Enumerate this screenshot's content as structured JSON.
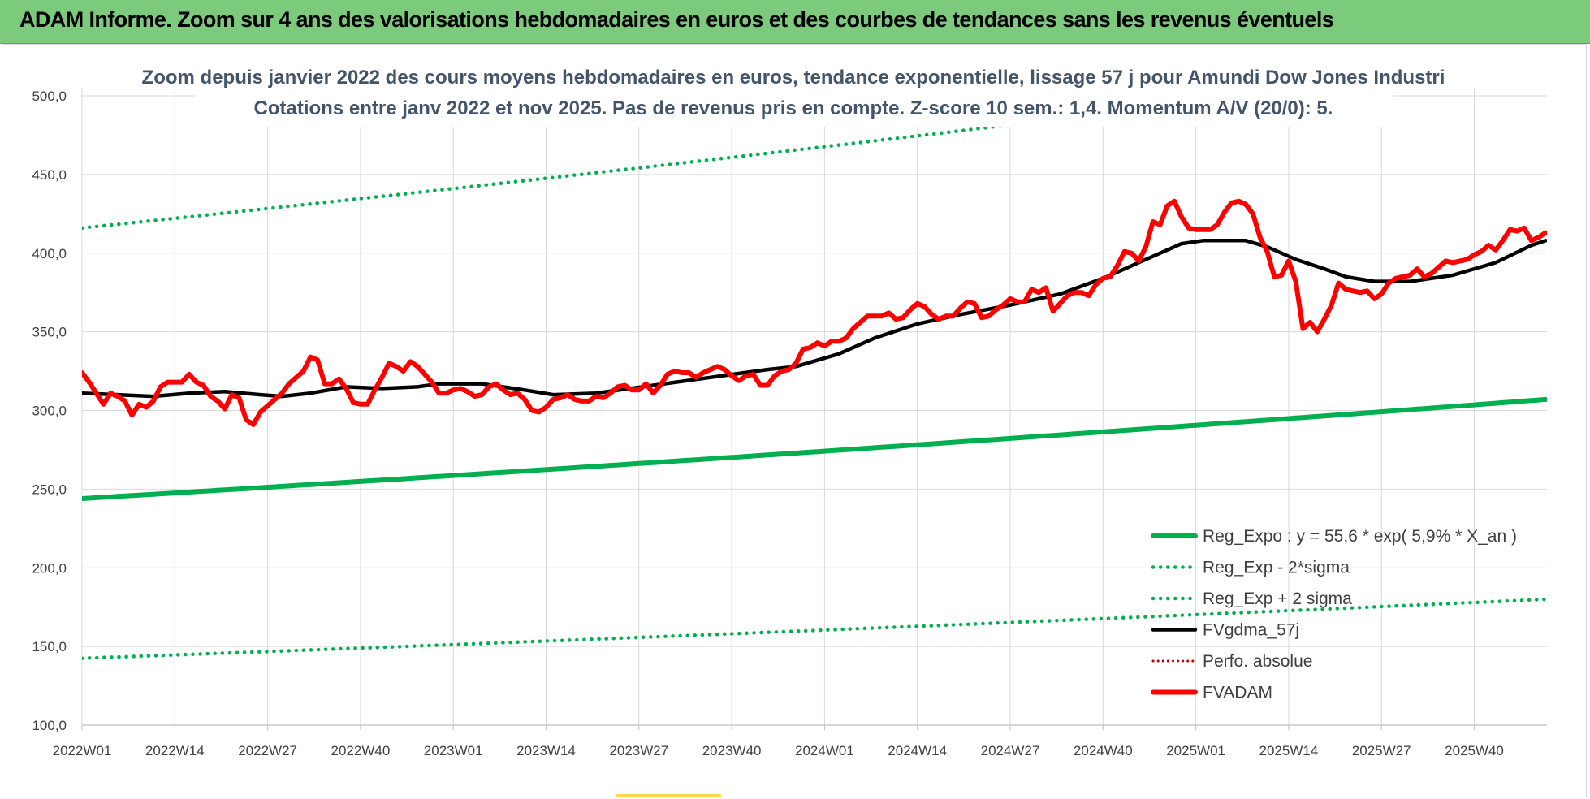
{
  "banner": {
    "title": "ADAM Informe. Zoom sur 4 ans des valorisations hebdomadaires en euros et des courbes de tendances sans les revenus éventuels"
  },
  "colors": {
    "banner_bg": "#7ccb7c",
    "reg_expo": "#00b050",
    "fvgdma": "#000000",
    "fvadam": "#ff0000",
    "perfo": "#c00000",
    "grid": "#d9d9d9",
    "title_text": "#44546a"
  },
  "chart_data": {
    "type": "line",
    "title_lines": [
      "Zoom depuis janvier 2022 des cours moyens hebdomadaires en euros, tendance exponentielle, lissage 57 j pour Amundi Dow Jones Industri",
      "Cotations entre janv 2022 et nov 2025. Pas de revenus pris en compte. Z-score 10 sem.: 1,4. Momentum A/V (20/0): 5."
    ],
    "xlabel": "",
    "ylabel": "",
    "ylim": [
      100,
      500
    ],
    "y_ticks": [
      "100,0",
      "150,0",
      "200,0",
      "250,0",
      "300,0",
      "350,0",
      "400,0",
      "450,0",
      "500,0"
    ],
    "x_ticks": [
      "2022W01",
      "2022W14",
      "2022W27",
      "2022W40",
      "2023W01",
      "2023W14",
      "2023W27",
      "2023W40",
      "2024W01",
      "2024W14",
      "2024W27",
      "2024W40",
      "2025W01",
      "2025W14",
      "2025W27",
      "2025W40"
    ],
    "x_tick_weeks": [
      0,
      13,
      26,
      39,
      52,
      65,
      78,
      91,
      104,
      117,
      130,
      143,
      156,
      169,
      182,
      195
    ],
    "week_count": 205,
    "grid": "vertical and horizontal",
    "legend_position": "bottom-right",
    "series": [
      {
        "name": "Reg_Expo : y = 55,6 * exp( 5,9% *  X_an )",
        "style": "solid-green",
        "start": 244,
        "end": 307
      },
      {
        "name": "Reg_Exp - 2*sigma",
        "style": "dotted-green",
        "start": 142.5,
        "end": 180
      },
      {
        "name": "Reg_Exp + 2 sigma",
        "style": "dotted-green",
        "start": 416,
        "end": 524
      },
      {
        "name": "FVgdma_57j",
        "style": "solid-black",
        "points": [
          [
            0,
            311
          ],
          [
            5,
            310
          ],
          [
            10,
            309
          ],
          [
            15,
            311
          ],
          [
            20,
            312
          ],
          [
            25,
            310
          ],
          [
            28,
            309
          ],
          [
            32,
            311
          ],
          [
            37,
            315
          ],
          [
            42,
            314
          ],
          [
            47,
            315
          ],
          [
            50,
            317
          ],
          [
            56,
            317
          ],
          [
            62,
            313
          ],
          [
            66,
            310
          ],
          [
            72,
            311
          ],
          [
            80,
            316
          ],
          [
            88,
            321
          ],
          [
            96,
            326
          ],
          [
            100,
            328
          ],
          [
            106,
            336
          ],
          [
            111,
            346
          ],
          [
            117,
            355
          ],
          [
            123,
            361
          ],
          [
            130,
            367
          ],
          [
            137,
            374
          ],
          [
            143,
            384
          ],
          [
            149,
            396
          ],
          [
            154,
            406
          ],
          [
            157,
            408
          ],
          [
            163,
            408
          ],
          [
            166,
            404
          ],
          [
            170,
            396
          ],
          [
            174,
            390
          ],
          [
            177,
            385
          ],
          [
            181,
            382
          ],
          [
            186,
            382
          ],
          [
            192,
            386
          ],
          [
            198,
            394
          ],
          [
            203,
            405
          ],
          [
            205,
            408
          ]
        ]
      },
      {
        "name": "Perfo. absolue",
        "style": "dotted-darkred",
        "points": []
      },
      {
        "name": "FVADAM",
        "style": "solid-red",
        "points": [
          [
            0,
            324
          ],
          [
            1,
            318
          ],
          [
            2,
            311
          ],
          [
            3,
            304
          ],
          [
            4,
            311
          ],
          [
            5,
            309
          ],
          [
            6,
            306
          ],
          [
            7,
            297
          ],
          [
            8,
            304
          ],
          [
            9,
            302
          ],
          [
            10,
            306
          ],
          [
            11,
            315
          ],
          [
            12,
            318
          ],
          [
            13,
            318
          ],
          [
            14,
            318
          ],
          [
            15,
            323
          ],
          [
            16,
            318
          ],
          [
            17,
            316
          ],
          [
            18,
            309
          ],
          [
            19,
            306
          ],
          [
            20,
            301
          ],
          [
            21,
            310
          ],
          [
            22,
            308
          ],
          [
            23,
            294
          ],
          [
            24,
            291
          ],
          [
            25,
            299
          ],
          [
            26,
            303
          ],
          [
            27,
            307
          ],
          [
            28,
            311
          ],
          [
            29,
            317
          ],
          [
            30,
            321
          ],
          [
            31,
            325
          ],
          [
            32,
            334
          ],
          [
            33,
            332
          ],
          [
            34,
            317
          ],
          [
            35,
            317
          ],
          [
            36,
            320
          ],
          [
            37,
            314
          ],
          [
            38,
            305
          ],
          [
            39,
            304
          ],
          [
            40,
            304
          ],
          [
            41,
            313
          ],
          [
            42,
            321
          ],
          [
            43,
            330
          ],
          [
            44,
            328
          ],
          [
            45,
            325
          ],
          [
            46,
            331
          ],
          [
            47,
            328
          ],
          [
            48,
            323
          ],
          [
            49,
            318
          ],
          [
            50,
            311
          ],
          [
            51,
            311
          ],
          [
            52,
            313
          ],
          [
            53,
            314
          ],
          [
            54,
            312
          ],
          [
            55,
            309
          ],
          [
            56,
            310
          ],
          [
            57,
            315
          ],
          [
            58,
            317
          ],
          [
            59,
            313
          ],
          [
            60,
            310
          ],
          [
            61,
            311
          ],
          [
            62,
            307
          ],
          [
            63,
            300
          ],
          [
            64,
            299
          ],
          [
            65,
            302
          ],
          [
            66,
            307
          ],
          [
            67,
            308
          ],
          [
            68,
            310
          ],
          [
            69,
            307
          ],
          [
            70,
            306
          ],
          [
            71,
            306
          ],
          [
            72,
            309
          ],
          [
            73,
            308
          ],
          [
            74,
            311
          ],
          [
            75,
            315
          ],
          [
            76,
            316
          ],
          [
            77,
            313
          ],
          [
            78,
            313
          ],
          [
            79,
            317
          ],
          [
            80,
            311
          ],
          [
            81,
            316
          ],
          [
            82,
            323
          ],
          [
            83,
            325
          ],
          [
            84,
            324
          ],
          [
            85,
            324
          ],
          [
            86,
            321
          ],
          [
            87,
            324
          ],
          [
            88,
            326
          ],
          [
            89,
            328
          ],
          [
            90,
            326
          ],
          [
            91,
            322
          ],
          [
            92,
            319
          ],
          [
            93,
            322
          ],
          [
            94,
            323
          ],
          [
            95,
            316
          ],
          [
            96,
            316
          ],
          [
            97,
            322
          ],
          [
            98,
            325
          ],
          [
            99,
            326
          ],
          [
            100,
            330
          ],
          [
            101,
            339
          ],
          [
            102,
            340
          ],
          [
            103,
            343
          ],
          [
            104,
            341
          ],
          [
            105,
            344
          ],
          [
            106,
            344
          ],
          [
            107,
            346
          ],
          [
            108,
            352
          ],
          [
            109,
            356
          ],
          [
            110,
            360
          ],
          [
            111,
            360
          ],
          [
            112,
            360
          ],
          [
            113,
            362
          ],
          [
            114,
            358
          ],
          [
            115,
            359
          ],
          [
            116,
            364
          ],
          [
            117,
            368
          ],
          [
            118,
            366
          ],
          [
            119,
            361
          ],
          [
            120,
            358
          ],
          [
            121,
            360
          ],
          [
            122,
            360
          ],
          [
            123,
            365
          ],
          [
            124,
            369
          ],
          [
            125,
            368
          ],
          [
            126,
            359
          ],
          [
            127,
            360
          ],
          [
            128,
            364
          ],
          [
            129,
            367
          ],
          [
            130,
            371
          ],
          [
            131,
            369
          ],
          [
            132,
            369
          ],
          [
            133,
            377
          ],
          [
            134,
            375
          ],
          [
            135,
            378
          ],
          [
            136,
            363
          ],
          [
            137,
            368
          ],
          [
            138,
            373
          ],
          [
            139,
            375
          ],
          [
            140,
            375
          ],
          [
            141,
            373
          ],
          [
            142,
            380
          ],
          [
            143,
            384
          ],
          [
            144,
            385
          ],
          [
            145,
            392
          ],
          [
            146,
            401
          ],
          [
            147,
            400
          ],
          [
            148,
            395
          ],
          [
            149,
            404
          ],
          [
            150,
            420
          ],
          [
            151,
            418
          ],
          [
            152,
            430
          ],
          [
            153,
            433
          ],
          [
            154,
            423
          ],
          [
            155,
            416
          ],
          [
            156,
            415
          ],
          [
            157,
            415
          ],
          [
            158,
            415
          ],
          [
            159,
            418
          ],
          [
            160,
            426
          ],
          [
            161,
            432
          ],
          [
            162,
            433
          ],
          [
            163,
            431
          ],
          [
            164,
            425
          ],
          [
            165,
            410
          ],
          [
            166,
            401
          ],
          [
            167,
            385
          ],
          [
            168,
            386
          ],
          [
            169,
            395
          ],
          [
            170,
            382
          ],
          [
            171,
            352
          ],
          [
            172,
            356
          ],
          [
            173,
            350
          ],
          [
            174,
            358
          ],
          [
            175,
            367
          ],
          [
            176,
            381
          ],
          [
            177,
            377
          ],
          [
            178,
            376
          ],
          [
            179,
            375
          ],
          [
            180,
            376
          ],
          [
            181,
            371
          ],
          [
            182,
            374
          ],
          [
            183,
            381
          ],
          [
            184,
            384
          ],
          [
            185,
            385
          ],
          [
            186,
            386
          ],
          [
            187,
            390
          ],
          [
            188,
            385
          ],
          [
            189,
            387
          ],
          [
            190,
            391
          ],
          [
            191,
            395
          ],
          [
            192,
            394
          ],
          [
            193,
            395
          ],
          [
            194,
            396
          ],
          [
            195,
            399
          ],
          [
            196,
            401
          ],
          [
            197,
            405
          ],
          [
            198,
            402
          ],
          [
            199,
            408
          ],
          [
            200,
            415
          ],
          [
            201,
            414
          ],
          [
            202,
            416
          ],
          [
            203,
            408
          ],
          [
            204,
            410
          ],
          [
            205,
            413
          ]
        ]
      }
    ]
  }
}
